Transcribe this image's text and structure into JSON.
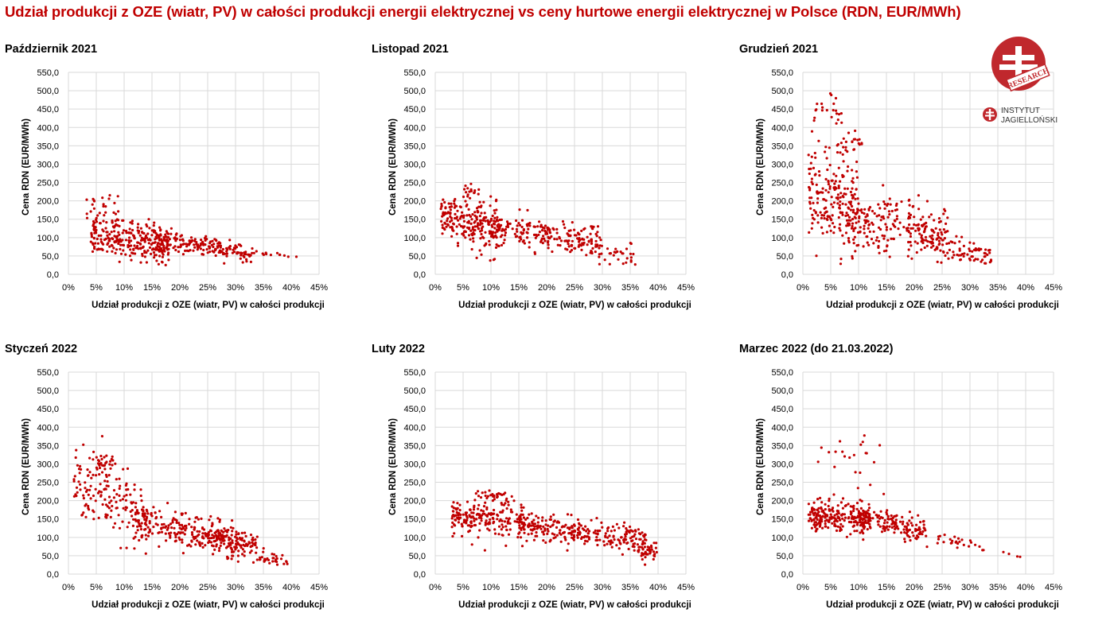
{
  "title": "Udział produkcji z OZE (wiatr, PV) w całości produkcji energii elektrycznej vs ceny hurtowe energii elektrycznej w Polsce (RDN, EUR/MWh)",
  "logo": {
    "badge_text": "RESEARCH",
    "line1": "INSTYTUT",
    "line2": "JAGIELLOŃSKI"
  },
  "colors": {
    "title": "#c00000",
    "points": "#c00000",
    "grid": "#d9d9d9"
  },
  "chart_data": [
    {
      "type": "scatter",
      "title": "Październik 2021",
      "xlabel": "Udział  produkcji  z OZE (wiatr, PV) w całości  produkcji",
      "ylabel": "Cena RDN (EUR/MWh)",
      "xlim": [
        0,
        45
      ],
      "ylim": [
        0,
        550
      ],
      "xticks": [
        "0%",
        "5%",
        "10%",
        "15%",
        "20%",
        "25%",
        "30%",
        "35%",
        "40%",
        "45%"
      ],
      "yticks": [
        "0,0",
        "50,0",
        "100,0",
        "150,0",
        "200,0",
        "250,0",
        "300,0",
        "350,0",
        "400,0",
        "450,0",
        "500,0",
        "550,0"
      ],
      "generator": {
        "seed": 11,
        "n": 520,
        "clusters": [
          {
            "w": 0.55,
            "xr": [
              4,
              18
            ],
            "y0": 125,
            "slope": -2.4,
            "sd": 28
          },
          {
            "w": 0.38,
            "xr": [
              15,
              33
            ],
            "y0": 132,
            "slope": -2.3,
            "sd": 13
          },
          {
            "w": 0.05,
            "xr": [
              3,
              9
            ],
            "y0": 210,
            "slope": -4.0,
            "sd": 28
          },
          {
            "w": 0.02,
            "xr": [
              33,
              41
            ],
            "y0": 95,
            "slope": -1.0,
            "sd": 5
          }
        ]
      }
    },
    {
      "type": "scatter",
      "title": "Listopad 2021",
      "xlabel": "Udział  produkcji  z OZE (wiatr, PV) w całości  produkcji",
      "ylabel": "Cena RDN (EUR/MWh)",
      "xlim": [
        0,
        45
      ],
      "ylim": [
        0,
        550
      ],
      "xticks": [
        "0%",
        "5%",
        "10%",
        "15%",
        "20%",
        "25%",
        "30%",
        "35%",
        "40%",
        "45%"
      ],
      "yticks": [
        "0,0",
        "50,0",
        "100,0",
        "150,0",
        "200,0",
        "250,0",
        "300,0",
        "350,0",
        "400,0",
        "450,0",
        "500,0",
        "550,0"
      ],
      "generator": {
        "seed": 23,
        "n": 500,
        "clusters": [
          {
            "w": 0.45,
            "xr": [
              1,
              12
            ],
            "y0": 160,
            "slope": -3.0,
            "sd": 32
          },
          {
            "w": 0.45,
            "xr": [
              10,
              30
            ],
            "y0": 145,
            "slope": -2.0,
            "sd": 20
          },
          {
            "w": 0.07,
            "xr": [
              28,
              36
            ],
            "y0": 125,
            "slope": -2.2,
            "sd": 15
          },
          {
            "w": 0.03,
            "xr": [
              5,
              8
            ],
            "y0": 225,
            "slope": 0,
            "sd": 15
          }
        ]
      }
    },
    {
      "type": "scatter",
      "title": "Grudzień 2021",
      "xlabel": "Udział  produkcji  z OZE (wiatr, PV) w całości  produkcji",
      "ylabel": "Cena RDN (EUR/MWh)",
      "xlim": [
        0,
        45
      ],
      "ylim": [
        0,
        550
      ],
      "xticks": [
        "0%",
        "5%",
        "10%",
        "15%",
        "20%",
        "25%",
        "30%",
        "35%",
        "40%",
        "45%"
      ],
      "yticks": [
        "0,0",
        "50,0",
        "100,0",
        "150,0",
        "200,0",
        "250,0",
        "300,0",
        "350,0",
        "400,0",
        "450,0",
        "500,0",
        "550,0"
      ],
      "generator": {
        "seed": 37,
        "n": 560,
        "clusters": [
          {
            "w": 0.3,
            "xr": [
              1,
              10
            ],
            "y0": 240,
            "slope": -6.0,
            "sd": 70
          },
          {
            "w": 0.05,
            "xr": [
              2,
              7
            ],
            "y0": 470,
            "slope": -6.0,
            "sd": 30
          },
          {
            "w": 0.4,
            "xr": [
              8,
              26
            ],
            "y0": 185,
            "slope": -3.0,
            "sd": 38
          },
          {
            "w": 0.2,
            "xr": [
              20,
              34
            ],
            "y0": 170,
            "slope": -3.5,
            "sd": 17
          },
          {
            "w": 0.05,
            "xr": [
              6,
              11
            ],
            "y0": 360,
            "slope": 0,
            "sd": 12
          }
        ]
      }
    },
    {
      "type": "scatter",
      "title": "Styczeń 2022",
      "xlabel": "Udział  produkcji  z OZE (wiatr, PV) w całości  produkcji",
      "ylabel": "Cena RDN (EUR/MWh)",
      "xlim": [
        0,
        45
      ],
      "ylim": [
        0,
        550
      ],
      "xticks": [
        "0%",
        "5%",
        "10%",
        "15%",
        "20%",
        "25%",
        "30%",
        "35%",
        "40%",
        "45%"
      ],
      "yticks": [
        "0,0",
        "50,0",
        "100,0",
        "150,0",
        "200,0",
        "250,0",
        "300,0",
        "350,0",
        "400,0",
        "450,0",
        "500,0",
        "550,0"
      ],
      "generator": {
        "seed": 51,
        "n": 560,
        "clusters": [
          {
            "w": 0.35,
            "xr": [
              1,
              14
            ],
            "y0": 270,
            "slope": -8.0,
            "sd": 50
          },
          {
            "w": 0.4,
            "xr": [
              12,
              32
            ],
            "y0": 190,
            "slope": -3.5,
            "sd": 25
          },
          {
            "w": 0.15,
            "xr": [
              25,
              34
            ],
            "y0": 180,
            "slope": -3.0,
            "sd": 15
          },
          {
            "w": 0.05,
            "xr": [
              33,
              40
            ],
            "y0": 200,
            "slope": -4.5,
            "sd": 15
          },
          {
            "w": 0.05,
            "xr": [
              5,
              8
            ],
            "y0": 300,
            "slope": 0,
            "sd": 10
          }
        ]
      }
    },
    {
      "type": "scatter",
      "title": "Luty 2022",
      "xlabel": "Udział  produkcji  z OZE (wiatr, PV) w całości  produkcji",
      "ylabel": "Cena RDN (EUR/MWh)",
      "xlim": [
        0,
        45
      ],
      "ylim": [
        0,
        550
      ],
      "xticks": [
        "0%",
        "5%",
        "10%",
        "15%",
        "20%",
        "25%",
        "30%",
        "35%",
        "40%",
        "45%"
      ],
      "yticks": [
        "0,0",
        "50,0",
        "100,0",
        "150,0",
        "200,0",
        "250,0",
        "300,0",
        "350,0",
        "400,0",
        "450,0",
        "500,0",
        "550,0"
      ],
      "generator": {
        "seed": 67,
        "n": 560,
        "clusters": [
          {
            "w": 0.35,
            "xr": [
              3,
              16
            ],
            "y0": 160,
            "slope": -1.2,
            "sd": 25
          },
          {
            "w": 0.55,
            "xr": [
              15,
              38
            ],
            "y0": 165,
            "slope": -2.0,
            "sd": 17
          },
          {
            "w": 0.05,
            "xr": [
              37,
              40
            ],
            "y0": 175,
            "slope": -3.0,
            "sd": 15
          },
          {
            "w": 0.05,
            "xr": [
              7,
              13
            ],
            "y0": 210,
            "slope": 0,
            "sd": 10
          }
        ]
      }
    },
    {
      "type": "scatter",
      "title": "Marzec 2022 (do 21.03.2022)",
      "xlabel": "Udział  produkcji  z OZE (wiatr, PV) w całości  produkcji",
      "ylabel": "Cena RDN (EUR/MWh)",
      "xlim": [
        0,
        45
      ],
      "ylim": [
        0,
        550
      ],
      "xticks": [
        "0%",
        "5%",
        "10%",
        "15%",
        "20%",
        "25%",
        "30%",
        "35%",
        "40%",
        "45%"
      ],
      "yticks": [
        "0,0",
        "50,0",
        "100,0",
        "150,0",
        "200,0",
        "250,0",
        "300,0",
        "350,0",
        "400,0",
        "450,0",
        "500,0",
        "550,0"
      ],
      "generator": {
        "seed": 79,
        "n": 420,
        "clusters": [
          {
            "w": 0.55,
            "xr": [
              1,
              12
            ],
            "y0": 165,
            "slope": -1.2,
            "sd": 22
          },
          {
            "w": 0.3,
            "xr": [
              10,
              22
            ],
            "y0": 175,
            "slope": -2.2,
            "sd": 15
          },
          {
            "w": 0.09,
            "xr": [
              18,
              33
            ],
            "y0": 150,
            "slope": -2.3,
            "sd": 10
          },
          {
            "w": 0.06,
            "xr": [
              2,
              15
            ],
            "y0": 310,
            "slope": 0,
            "sd": 45
          }
        ]
      },
      "fixed_points": [
        [
          36,
          60
        ],
        [
          37,
          55
        ],
        [
          38.5,
          48
        ],
        [
          39,
          47
        ]
      ]
    }
  ]
}
